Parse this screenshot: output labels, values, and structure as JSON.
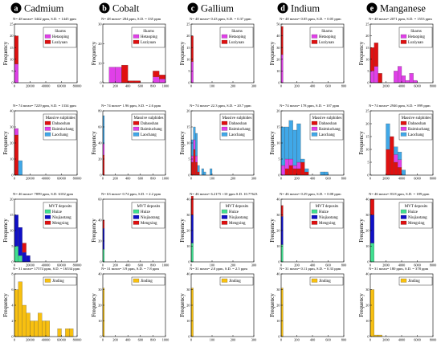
{
  "figure": {
    "columns": [
      {
        "letter": "a",
        "element": "Cadmium"
      },
      {
        "letter": "b",
        "element": "Cobalt"
      },
      {
        "letter": "c",
        "element": "Gallium"
      },
      {
        "letter": "d",
        "element": "Indium"
      },
      {
        "letter": "e",
        "element": "Manganese"
      }
    ],
    "ylabel": "Frequency",
    "colors": {
      "Hetaoping": "#e040e8",
      "Luziyuan": "#e01010",
      "Dabaoshan": "#e01010",
      "Baimiuchang": "#e040e8",
      "Laochang": "#40a8e8",
      "Huize": "#40e090",
      "Niujiaotang": "#1010c8",
      "Mengxing": "#e01010",
      "Jinding": "#f8c010"
    }
  },
  "chart_data": [
    {
      "type": "bar",
      "panel": "Cadmium-Skarns",
      "title": "N= 48 mean= 3442 ppm, S.D. = 1445 ppm",
      "xlim": [
        0,
        80000
      ],
      "ylim": [
        0,
        25
      ],
      "xticks": [
        0,
        20000,
        40000,
        60000,
        80000
      ],
      "yticks": [
        0,
        5,
        10,
        15,
        20,
        25
      ],
      "legend_title": "Skarns",
      "bin_edges": [
        0,
        5000
      ],
      "series": [
        {
          "name": "Hetaoping",
          "values": [
            8
          ]
        },
        {
          "name": "Luziyuan",
          "values": [
            12
          ]
        }
      ]
    },
    {
      "type": "bar",
      "panel": "Cobalt-Skarns",
      "title": "N= 48 mean= 284 ppm, S.D. = 335 ppm",
      "xlim": [
        0,
        1000
      ],
      "ylim": [
        0,
        30
      ],
      "xticks": [
        0,
        200,
        400,
        600,
        800,
        1000
      ],
      "yticks": [
        0,
        10,
        20,
        30
      ],
      "legend_title": "Skarns",
      "bin_edges": [
        0,
        100,
        200,
        300,
        400,
        500,
        600,
        700,
        800,
        900,
        1000
      ],
      "series": [
        {
          "name": "Hetaoping",
          "values": [
            0,
            8,
            8,
            0,
            0,
            0,
            0,
            0,
            3,
            2
          ]
        },
        {
          "name": "Luziyuan",
          "values": [
            0,
            0,
            0,
            9,
            1,
            1,
            0,
            0,
            3,
            2
          ]
        }
      ]
    },
    {
      "type": "bar",
      "panel": "Gallium-Skarns",
      "title": "N= 48 mean= 0.43 ppm, S.D. = 0.37 ppm",
      "xlim": [
        0,
        300
      ],
      "ylim": [
        0,
        25
      ],
      "xticks": [
        0,
        100,
        200,
        300
      ],
      "yticks": [
        0,
        5,
        10,
        15,
        20,
        25
      ],
      "legend_title": "Skarns",
      "bin_edges": [
        0,
        10
      ],
      "series": [
        {
          "name": "Hetaoping",
          "values": [
            9
          ]
        },
        {
          "name": "Luziyuan",
          "values": [
            11
          ]
        }
      ]
    },
    {
      "type": "bar",
      "panel": "Indium-Skarns",
      "title": "N= 48 mean= 0.05 ppm, S.D. = 0.05 ppm",
      "xlim": [
        0,
        800
      ],
      "ylim": [
        0,
        50
      ],
      "xticks": [
        0,
        200,
        400,
        600,
        800
      ],
      "yticks": [
        0,
        10,
        20,
        30,
        40,
        50
      ],
      "legend_title": "Skarns",
      "bin_edges": [
        0,
        25
      ],
      "series": [
        {
          "name": "Hetaoping",
          "values": [
            24
          ]
        },
        {
          "name": "Luziyuan",
          "values": [
            24
          ]
        }
      ]
    },
    {
      "type": "bar",
      "panel": "Manganese-Skarns",
      "title": "N= 48 mean= 2071 ppm, S.D. = 1553 ppm",
      "xlim": [
        0,
        8000
      ],
      "ylim": [
        0,
        25
      ],
      "xticks": [
        0,
        2000,
        4000,
        6000,
        8000
      ],
      "yticks": [
        0,
        5,
        10,
        15,
        20,
        25
      ],
      "legend_title": "Skarns",
      "bin_edges": [
        0,
        500,
        1000,
        1500,
        2000,
        2500,
        3000,
        3500,
        4000,
        4500,
        5000,
        5500,
        6000
      ],
      "series": [
        {
          "name": "Hetaoping",
          "values": [
            5,
            7,
            0,
            0,
            0,
            0,
            5,
            7,
            3,
            1,
            4,
            1
          ]
        },
        {
          "name": "Luziyuan",
          "values": [
            10,
            10,
            4,
            0,
            0,
            0,
            0,
            0,
            0,
            0,
            0,
            0
          ]
        }
      ]
    },
    {
      "type": "bar",
      "panel": "Cadmium-Massive",
      "title": "N= 74 mean= 7229 ppm, S.D. = 1334 ppm",
      "xlim": [
        0,
        80000
      ],
      "ylim": [
        0,
        40
      ],
      "xticks": [
        0,
        20000,
        40000,
        60000,
        80000
      ],
      "yticks": [
        0,
        10,
        20,
        30,
        40
      ],
      "legend_title": "Massive sulphides",
      "bin_edges": [
        0,
        5000,
        10000,
        15000,
        20000
      ],
      "series": [
        {
          "name": "Dabaoshan",
          "values": [
            25,
            0,
            0,
            0
          ]
        },
        {
          "name": "Baimiuchang",
          "values": [
            4,
            0,
            0,
            0
          ]
        },
        {
          "name": "Laochang",
          "values": [
            0,
            9,
            0,
            0
          ]
        }
      ]
    },
    {
      "type": "bar",
      "panel": "Cobalt-Massive",
      "title": "N= 74 mean= 1.96 ppm, S.D. = 2.6 ppm",
      "xlim": [
        0,
        1000
      ],
      "ylim": [
        0,
        80
      ],
      "xticks": [
        0,
        200,
        400,
        600,
        800,
        1000
      ],
      "yticks": [
        0,
        20,
        40,
        60,
        80
      ],
      "legend_title": "Massive sulphides",
      "bin_edges": [
        0,
        25
      ],
      "series": [
        {
          "name": "Dabaoshan",
          "values": [
            25
          ]
        },
        {
          "name": "Baimiuchang",
          "values": [
            14
          ]
        },
        {
          "name": "Laochang",
          "values": [
            35
          ]
        }
      ]
    },
    {
      "type": "bar",
      "panel": "Gallium-Massive",
      "title": "N= 74 mean= 22.3 ppm, S.D. = 20.7 ppm",
      "xlim": [
        0,
        300
      ],
      "ylim": [
        0,
        20
      ],
      "xticks": [
        0,
        100,
        200,
        300
      ],
      "yticks": [
        0,
        5,
        10,
        15,
        20
      ],
      "legend_title": "Massive sulphides",
      "bin_edges": [
        0,
        10,
        20,
        30,
        40,
        50,
        60,
        70,
        80,
        90,
        100
      ],
      "series": [
        {
          "name": "Dabaoshan",
          "values": [
            4,
            8,
            4,
            1,
            0,
            0,
            0,
            0,
            0,
            0
          ]
        },
        {
          "name": "Baimiuchang",
          "values": [
            2,
            3,
            2,
            0,
            0,
            0,
            0,
            0,
            0,
            0
          ]
        },
        {
          "name": "Laochang",
          "values": [
            5,
            4,
            7,
            2,
            0,
            2,
            1,
            0,
            0,
            2
          ]
        }
      ]
    },
    {
      "type": "bar",
      "panel": "Indium-Massive",
      "title": "N= 74 mean= 178 ppm, S.D. = 107 ppm",
      "xlim": [
        0,
        800
      ],
      "ylim": [
        0,
        20
      ],
      "xticks": [
        0,
        200,
        400,
        600,
        800
      ],
      "yticks": [
        0,
        5,
        10,
        15,
        20
      ],
      "legend_title": "Massive sulphides",
      "bin_edges": [
        0,
        50,
        100,
        150,
        200,
        250,
        300,
        350,
        400,
        450,
        500,
        550,
        600
      ],
      "series": [
        {
          "name": "Dabaoshan",
          "values": [
            0,
            2,
            3,
            2,
            2,
            4,
            1,
            0,
            0,
            0,
            0,
            0
          ]
        },
        {
          "name": "Baimiuchang",
          "values": [
            3,
            3,
            2,
            1,
            2,
            0,
            0,
            0,
            0,
            0,
            0,
            0
          ]
        },
        {
          "name": "Laochang",
          "values": [
            12,
            10,
            12,
            11,
            12,
            1,
            1,
            0,
            0,
            0,
            1,
            1
          ]
        }
      ]
    },
    {
      "type": "bar",
      "panel": "Manganese-Massive",
      "title": "N= 74 mean= 2946 ppm, S.D. = 899 ppm",
      "xlim": [
        0,
        8000
      ],
      "ylim": [
        0,
        25
      ],
      "xticks": [
        0,
        2000,
        4000,
        6000,
        8000
      ],
      "yticks": [
        0,
        5,
        10,
        15,
        20,
        25
      ],
      "legend_title": "Massive sulphides",
      "bin_edges": [
        0,
        500,
        1000,
        1500,
        2000,
        2500,
        3000,
        3500,
        4000,
        4500
      ],
      "series": [
        {
          "name": "Dabaoshan",
          "values": [
            0,
            0,
            0,
            0,
            10,
            15,
            5,
            3,
            0
          ]
        },
        {
          "name": "Baimiuchang",
          "values": [
            0,
            0,
            0,
            0,
            0,
            0,
            3,
            3,
            0
          ]
        },
        {
          "name": "Laochang",
          "values": [
            0,
            0,
            0,
            0,
            10,
            0,
            3,
            3,
            2
          ]
        }
      ]
    },
    {
      "type": "bar",
      "panel": "Cadmium-MVT",
      "title": "N= 46 mean= 7899 ppm, S.D. 6102 ppm",
      "xlim": [
        0,
        80000
      ],
      "ylim": [
        0,
        20
      ],
      "xticks": [
        0,
        20000,
        40000,
        60000,
        80000
      ],
      "yticks": [
        0,
        5,
        10,
        15,
        20
      ],
      "legend_title": "MVT deposits",
      "bin_edges": [
        0,
        5000,
        10000,
        15000,
        20000
      ],
      "series": [
        {
          "name": "Huize",
          "values": [
            5,
            2,
            0,
            0
          ]
        },
        {
          "name": "Niujiaotang",
          "values": [
            10,
            9,
            3,
            2
          ]
        },
        {
          "name": "Mengxing",
          "values": [
            0,
            0,
            3,
            0
          ]
        }
      ]
    },
    {
      "type": "bar",
      "panel": "Cobalt-MVT",
      "title": "N= 63 mean= 0.74 ppm, S.D. = 2.2 ppm",
      "xlim": [
        0,
        1000
      ],
      "ylim": [
        0,
        60
      ],
      "xticks": [
        0,
        200,
        400,
        600,
        800,
        1000
      ],
      "yticks": [
        0,
        20,
        40,
        60
      ],
      "legend_title": "MVT deposits",
      "bin_edges": [
        0,
        25
      ],
      "series": [
        {
          "name": "Huize",
          "values": [
            12
          ]
        },
        {
          "name": "Niujiaotang",
          "values": [
            20
          ]
        },
        {
          "name": "Mengxing",
          "values": [
            8
          ]
        }
      ]
    },
    {
      "type": "bar",
      "panel": "Gallium-MVT",
      "title": "N= 46 mean= 6.2175 ×10 ppm S.D. 10.77623",
      "xlim": [
        0,
        300
      ],
      "ylim": [
        0,
        40
      ],
      "xticks": [
        0,
        100,
        200,
        300
      ],
      "yticks": [
        0,
        10,
        20,
        30,
        40
      ],
      "legend_title": "MVT deposits",
      "bin_edges": [
        0,
        10
      ],
      "series": [
        {
          "name": "Huize",
          "values": [
            12
          ]
        },
        {
          "name": "Niujiaotang",
          "values": [
            18
          ]
        },
        {
          "name": "Mengxing",
          "values": [
            12
          ]
        }
      ]
    },
    {
      "type": "bar",
      "panel": "Indium-MVT",
      "title": "N= 46 mean= 0.29 ppm, S.D. = 0.08 ppm",
      "xlim": [
        0,
        800
      ],
      "ylim": [
        0,
        40
      ],
      "xticks": [
        0,
        200,
        400,
        600,
        800
      ],
      "yticks": [
        0,
        10,
        20,
        30,
        40
      ],
      "legend_title": "MVT deposits",
      "bin_edges": [
        0,
        25
      ],
      "series": [
        {
          "name": "Huize",
          "values": [
            11
          ]
        },
        {
          "name": "Niujiaotang",
          "values": [
            18
          ]
        },
        {
          "name": "Mengxing",
          "values": [
            7
          ]
        }
      ]
    },
    {
      "type": "bar",
      "panel": "Manganese-MVT",
      "title": "N= 46 mean= 83.8 ppm, S.D. = 189 ppm",
      "xlim": [
        0,
        8000
      ],
      "ylim": [
        0,
        40
      ],
      "xticks": [
        0,
        2000,
        4000,
        6000,
        8000
      ],
      "yticks": [
        0,
        10,
        20,
        30,
        40
      ],
      "legend_title": "MVT deposits",
      "bin_edges": [
        0,
        500
      ],
      "series": [
        {
          "name": "Huize",
          "values": [
            12
          ]
        },
        {
          "name": "Niujiaotang",
          "values": [
            18
          ]
        },
        {
          "name": "Mengxing",
          "values": [
            10
          ]
        }
      ]
    },
    {
      "type": "bar",
      "panel": "Cadmium-Jinding",
      "title": "N= 31 mean= 17574 ppm, S.D. = 16534 ppm",
      "xlim": [
        0,
        80000
      ],
      "ylim": [
        0,
        8
      ],
      "xticks": [
        0,
        20000,
        40000,
        60000,
        80000
      ],
      "yticks": [
        0,
        2,
        4,
        6,
        8
      ],
      "legend_title": "",
      "bin_edges": [
        0,
        5000,
        10000,
        15000,
        20000,
        25000,
        30000,
        35000,
        40000,
        45000,
        50000,
        55000,
        60000,
        65000,
        70000,
        75000
      ],
      "series": [
        {
          "name": "Jinding",
          "values": [
            6,
            7,
            4,
            3,
            2,
            2,
            3,
            2,
            2,
            0,
            0,
            1,
            0,
            1,
            1
          ]
        }
      ]
    },
    {
      "type": "bar",
      "panel": "Cobalt-Jinding",
      "title": "N= 31 mean= 3.9 ppm, S.D. = 7.8 ppm",
      "xlim": [
        0,
        1000
      ],
      "ylim": [
        0,
        40
      ],
      "xticks": [
        0,
        200,
        400,
        600,
        800,
        1000
      ],
      "yticks": [
        0,
        10,
        20,
        30,
        40
      ],
      "legend_title": "",
      "bin_edges": [
        0,
        25
      ],
      "series": [
        {
          "name": "Jinding",
          "values": [
            31
          ]
        }
      ]
    },
    {
      "type": "bar",
      "panel": "Gallium-Jinding",
      "title": "N= 31 mean= 2.0 ppm, S.D. = 2.5 ppm",
      "xlim": [
        0,
        300
      ],
      "ylim": [
        0,
        40
      ],
      "xticks": [
        0,
        100,
        200,
        300
      ],
      "yticks": [
        0,
        10,
        20,
        30,
        40
      ],
      "legend_title": "",
      "bin_edges": [
        0,
        10
      ],
      "series": [
        {
          "name": "Jinding",
          "values": [
            31
          ]
        }
      ]
    },
    {
      "type": "bar",
      "panel": "Indium-Jinding",
      "title": "N= 31 mean= 0.11 ppm, S.D. = 0.33 ppm",
      "xlim": [
        0,
        800
      ],
      "ylim": [
        0,
        40
      ],
      "xticks": [
        0,
        200,
        400,
        600,
        800
      ],
      "yticks": [
        0,
        10,
        20,
        30,
        40
      ],
      "legend_title": "",
      "bin_edges": [
        0,
        25
      ],
      "series": [
        {
          "name": "Jinding",
          "values": [
            31
          ]
        }
      ]
    },
    {
      "type": "bar",
      "panel": "Manganese-Jinding",
      "title": "N= 31 mean= 180 ppm, S.D. = 378 ppm",
      "xlim": [
        0,
        8000
      ],
      "ylim": [
        0,
        40
      ],
      "xticks": [
        0,
        2000,
        4000,
        6000,
        8000
      ],
      "yticks": [
        0,
        10,
        20,
        30,
        40
      ],
      "legend_title": "",
      "bin_edges": [
        0,
        500,
        1000,
        1500
      ],
      "series": [
        {
          "name": "Jinding",
          "values": [
            30,
            1,
            1
          ]
        }
      ]
    }
  ]
}
